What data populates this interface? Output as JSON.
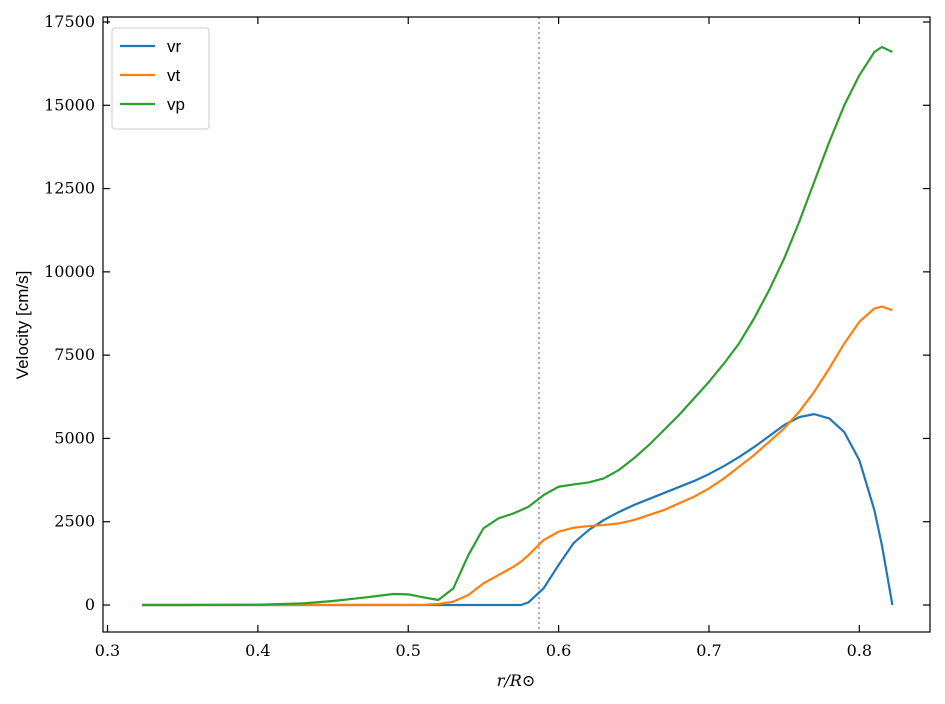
{
  "chart_data": {
    "type": "line",
    "xlabel": "r/R⊙",
    "ylabel": "Velocity [cm/s]",
    "x": [
      0.323,
      0.35,
      0.4,
      0.43,
      0.45,
      0.47,
      0.49,
      0.5,
      0.51,
      0.52,
      0.53,
      0.54,
      0.55,
      0.56,
      0.57,
      0.575,
      0.58,
      0.59,
      0.6,
      0.61,
      0.62,
      0.63,
      0.64,
      0.65,
      0.66,
      0.67,
      0.68,
      0.69,
      0.7,
      0.71,
      0.72,
      0.73,
      0.74,
      0.75,
      0.76,
      0.77,
      0.78,
      0.79,
      0.8,
      0.81,
      0.815,
      0.822
    ],
    "series": [
      {
        "name": "vr",
        "color": "#1f77b4",
        "values": [
          0,
          0,
          0,
          0,
          0,
          0,
          0,
          0,
          0,
          0,
          0,
          0,
          0,
          0,
          0,
          0,
          80,
          500,
          1200,
          1860,
          2250,
          2550,
          2790,
          3000,
          3180,
          3360,
          3540,
          3720,
          3930,
          4170,
          4440,
          4740,
          5070,
          5400,
          5640,
          5730,
          5600,
          5190,
          4350,
          2850,
          1800,
          0
        ]
      },
      {
        "name": "vt",
        "color": "#ff7f0e",
        "values": [
          0,
          0,
          0,
          0,
          0,
          0,
          0,
          0,
          5,
          30,
          100,
          300,
          650,
          900,
          1150,
          1300,
          1500,
          1950,
          2200,
          2320,
          2370,
          2400,
          2450,
          2550,
          2700,
          2850,
          3050,
          3250,
          3500,
          3800,
          4150,
          4500,
          4900,
          5300,
          5800,
          6400,
          7100,
          7850,
          8500,
          8900,
          8960,
          8850
        ]
      },
      {
        "name": "vp",
        "color": "#2ca02c",
        "values": [
          0,
          0,
          10,
          50,
          120,
          220,
          330,
          320,
          230,
          150,
          500,
          1500,
          2300,
          2600,
          2750,
          2850,
          2950,
          3300,
          3550,
          3620,
          3680,
          3800,
          4050,
          4400,
          4800,
          5250,
          5700,
          6200,
          6700,
          7250,
          7850,
          8600,
          9450,
          10400,
          11500,
          12700,
          13900,
          15000,
          15900,
          16600,
          16750,
          16600
        ]
      }
    ],
    "vline": {
      "x": 0.587,
      "color": "#aaaaaa"
    },
    "xlim": [
      0.297,
      0.847
    ],
    "xticks": [
      0.3,
      0.4,
      0.5,
      0.6,
      0.7,
      0.8
    ],
    "ylim": [
      -810,
      17650
    ],
    "yticks": [
      0,
      2500,
      5000,
      7500,
      10000,
      12500,
      15000,
      17500
    ],
    "legend": "upper left"
  }
}
